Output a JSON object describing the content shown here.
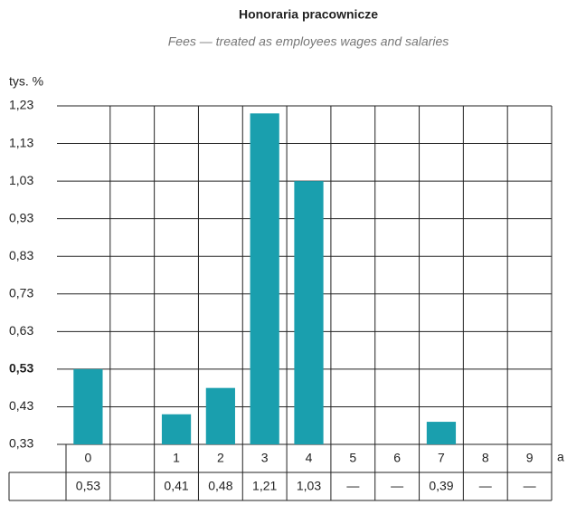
{
  "chart_data": {
    "type": "bar",
    "title": "Honoraria pracownicze",
    "subtitle": "Fees — treated as employees wages and salaries",
    "y_label": "tys. %",
    "x_label": "a",
    "categories": [
      "0",
      null,
      "1",
      "2",
      "3",
      "4",
      "5",
      "6",
      "7",
      "8",
      "9"
    ],
    "values": [
      0.53,
      null,
      0.41,
      0.48,
      1.21,
      1.03,
      null,
      null,
      0.39,
      null,
      null
    ],
    "value_labels": [
      "0,53",
      null,
      "0,41",
      "0,48",
      "1,21",
      "1,03",
      "—",
      "—",
      "0,39",
      "—",
      "—"
    ],
    "color": "#1a9fae",
    "ylim": [
      0.33,
      1.23
    ],
    "yticks": [
      {
        "value": 0.33,
        "label": "0,33"
      },
      {
        "value": 0.43,
        "label": "0,43"
      },
      {
        "value": 0.53,
        "label": "0,53",
        "bold": true
      },
      {
        "value": 0.63,
        "label": "0,63"
      },
      {
        "value": 0.73,
        "label": "0,73"
      },
      {
        "value": 0.83,
        "label": "0,83"
      },
      {
        "value": 0.93,
        "label": "0,93"
      },
      {
        "value": 1.03,
        "label": "1,03"
      },
      {
        "value": 1.13,
        "label": "1,13"
      },
      {
        "value": 1.23,
        "label": "1,23"
      }
    ],
    "grid": true
  }
}
